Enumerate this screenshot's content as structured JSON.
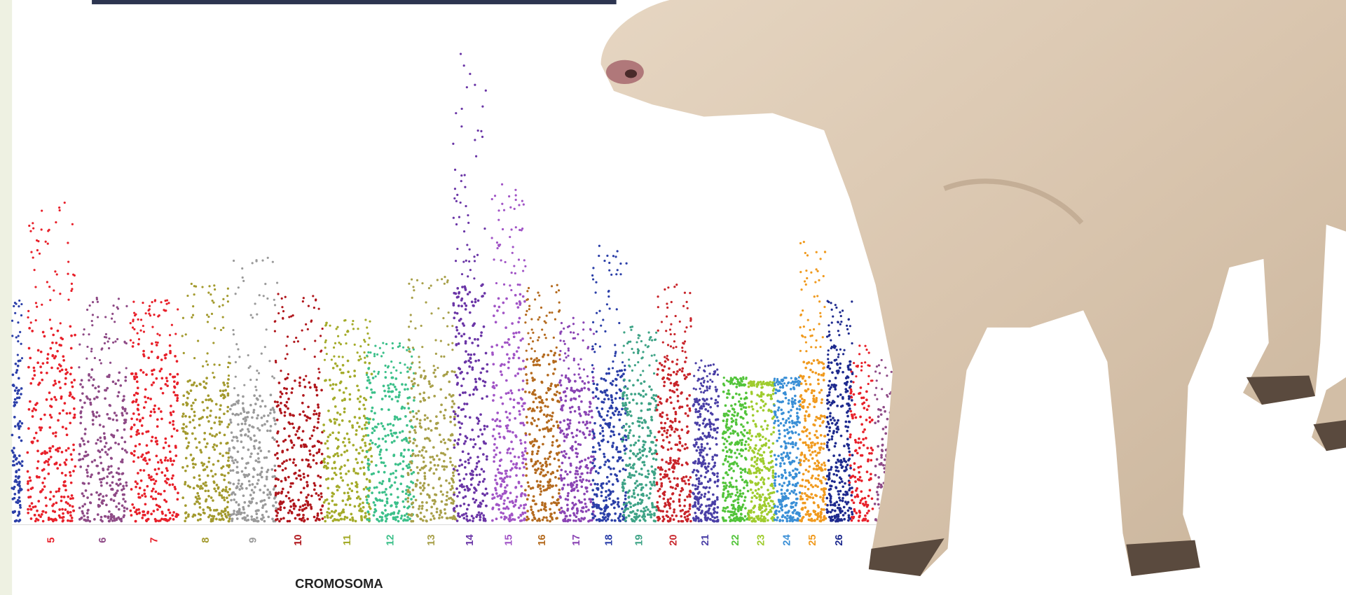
{
  "x_axis": {
    "label": "CROMOSOMA"
  },
  "chromosomes": [
    {
      "label": "5",
      "color": "#e8202a"
    },
    {
      "label": "6",
      "color": "#8e4a86"
    },
    {
      "label": "7",
      "color": "#e8202a"
    },
    {
      "label": "8",
      "color": "#a39a2e"
    },
    {
      "label": "9",
      "color": "#9a9a9a"
    },
    {
      "label": "10",
      "color": "#b0161c"
    },
    {
      "label": "11",
      "color": "#a4ab2a"
    },
    {
      "label": "12",
      "color": "#3cc08a"
    },
    {
      "label": "13",
      "color": "#a8a04a"
    },
    {
      "label": "14",
      "color": "#6a35a6"
    },
    {
      "label": "15",
      "color": "#a154c6"
    },
    {
      "label": "16",
      "color": "#b46a1e"
    },
    {
      "label": "17",
      "color": "#8a44b4"
    },
    {
      "label": "18",
      "color": "#2b3fa8"
    },
    {
      "label": "19",
      "color": "#3ea386"
    },
    {
      "label": "20",
      "color": "#c8242a"
    },
    {
      "label": "21",
      "color": "#4a3fa6"
    },
    {
      "label": "22",
      "color": "#52c43a"
    },
    {
      "label": "23",
      "color": "#9fcc2e"
    },
    {
      "label": "24",
      "color": "#3a8fd6"
    },
    {
      "label": "25",
      "color": "#f09a1e"
    },
    {
      "label": "26",
      "color": "#1e2a8e"
    }
  ]
}
